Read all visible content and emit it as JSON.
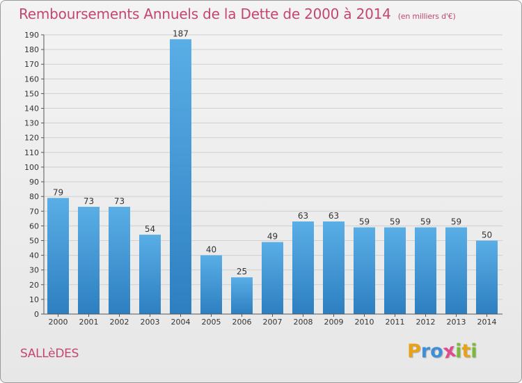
{
  "header": {
    "title": "Remboursements Annuels de la Dette de 2000 à 2014",
    "unit": "(en milliers d'€)"
  },
  "footer": {
    "commune": "SALLèDES",
    "logo": "Proxiti",
    "logo_letters": [
      "P",
      "r",
      "o",
      "x",
      "i",
      "t",
      "i"
    ],
    "logo_colors": [
      "#e8a219",
      "#3f8fd8",
      "#3f8fd8",
      "#e24a8e",
      "#7bb93a",
      "#e8a219",
      "#7bb93a"
    ]
  },
  "colors": {
    "title": "#c4466e",
    "bar_top": "#5aaee6",
    "bar_bottom": "#2d7fc0",
    "grid": "#cfcfcf",
    "axis": "#555555"
  },
  "chart_data": {
    "type": "bar",
    "title": "Remboursements Annuels de la Dette de 2000 à 2014",
    "categories": [
      "2000",
      "2001",
      "2002",
      "2003",
      "2004",
      "2005",
      "2006",
      "2007",
      "2008",
      "2009",
      "2010",
      "2011",
      "2012",
      "2013",
      "2014"
    ],
    "values": [
      79,
      73,
      73,
      54,
      187,
      40,
      25,
      49,
      63,
      63,
      59,
      59,
      59,
      59,
      50
    ],
    "ylim": [
      0,
      190
    ],
    "yticks": [
      0,
      10,
      20,
      30,
      40,
      50,
      60,
      70,
      80,
      90,
      100,
      110,
      120,
      130,
      140,
      150,
      160,
      170,
      180,
      190
    ],
    "grid": true,
    "data_labels": true
  }
}
